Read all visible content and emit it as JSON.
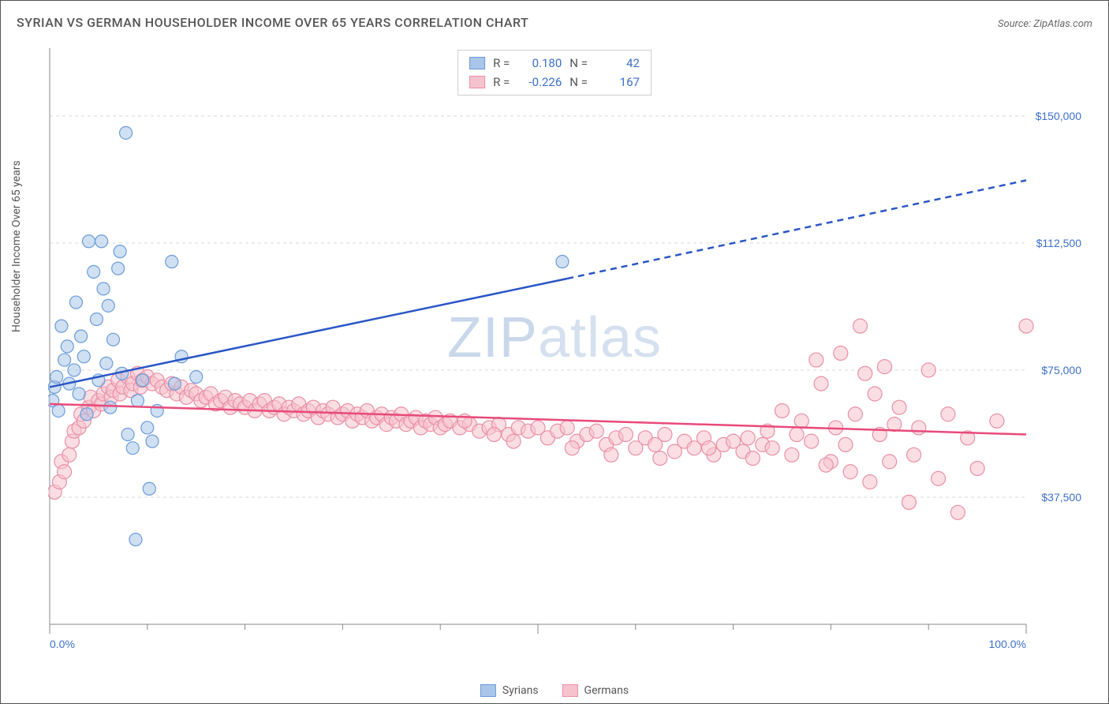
{
  "title": "SYRIAN VS GERMAN HOUSEHOLDER INCOME OVER 65 YEARS CORRELATION CHART",
  "source": "Source: ZipAtlas.com",
  "y_label": "Householder Income Over 65 years",
  "watermark_a": "ZIP",
  "watermark_b": "atlas",
  "chart": {
    "type": "scatter",
    "background_color": "#ffffff",
    "grid_color": "#d8d8d8",
    "axis_color": "#888888",
    "xlim": [
      0,
      100
    ],
    "ylim": [
      0,
      170000
    ],
    "x_ticks_major": [
      0,
      50,
      100
    ],
    "x_ticks_minor": [
      10,
      20,
      30,
      40,
      60,
      70,
      80,
      90
    ],
    "x_tick_labels": {
      "0": "0.0%",
      "100": "100.0%"
    },
    "y_ticks": [
      37500,
      75000,
      112500,
      150000
    ],
    "y_tick_labels": {
      "37500": "$37,500",
      "75000": "$75,000",
      "112500": "$112,500",
      "150000": "$150,000"
    },
    "label_color": "#3b6fc9",
    "label_fontsize": 14
  },
  "series": {
    "syrians": {
      "label": "Syrians",
      "color_fill": "#a9c6ea",
      "color_stroke": "#6b9bd8",
      "marker_radius": 8,
      "trend_color": "#2a56c6",
      "trend_width": 2.5,
      "trend_start": {
        "x": 0,
        "y": 70000
      },
      "trend_solid_end": {
        "x": 53,
        "y": 102000
      },
      "trend_dash_end": {
        "x": 100,
        "y": 131000
      },
      "R": "0.180",
      "N": "42",
      "points": [
        {
          "x": 0.3,
          "y": 66000
        },
        {
          "x": 0.5,
          "y": 70000
        },
        {
          "x": 0.7,
          "y": 73000
        },
        {
          "x": 0.9,
          "y": 63000
        },
        {
          "x": 1.2,
          "y": 88000
        },
        {
          "x": 1.5,
          "y": 78000
        },
        {
          "x": 1.8,
          "y": 82000
        },
        {
          "x": 2.0,
          "y": 71000
        },
        {
          "x": 2.5,
          "y": 75000
        },
        {
          "x": 2.7,
          "y": 95000
        },
        {
          "x": 3.0,
          "y": 68000
        },
        {
          "x": 3.2,
          "y": 85000
        },
        {
          "x": 3.5,
          "y": 79000
        },
        {
          "x": 4.0,
          "y": 113000
        },
        {
          "x": 4.5,
          "y": 104000
        },
        {
          "x": 4.8,
          "y": 90000
        },
        {
          "x": 5.0,
          "y": 72000
        },
        {
          "x": 5.3,
          "y": 113000
        },
        {
          "x": 5.5,
          "y": 99000
        },
        {
          "x": 5.8,
          "y": 77000
        },
        {
          "x": 6.0,
          "y": 94000
        },
        {
          "x": 6.2,
          "y": 64000
        },
        {
          "x": 6.5,
          "y": 84000
        },
        {
          "x": 7.0,
          "y": 105000
        },
        {
          "x": 7.2,
          "y": 110000
        },
        {
          "x": 7.4,
          "y": 74000
        },
        {
          "x": 8.0,
          "y": 56000
        },
        {
          "x": 8.5,
          "y": 52000
        },
        {
          "x": 7.8,
          "y": 145000
        },
        {
          "x": 9.0,
          "y": 66000
        },
        {
          "x": 9.5,
          "y": 72000
        },
        {
          "x": 10.0,
          "y": 58000
        },
        {
          "x": 10.5,
          "y": 54000
        },
        {
          "x": 8.8,
          "y": 25000
        },
        {
          "x": 12.5,
          "y": 107000
        },
        {
          "x": 12.8,
          "y": 71000
        },
        {
          "x": 13.5,
          "y": 79000
        },
        {
          "x": 10.2,
          "y": 40000
        },
        {
          "x": 15.0,
          "y": 73000
        },
        {
          "x": 11.0,
          "y": 63000
        },
        {
          "x": 52.5,
          "y": 107000
        },
        {
          "x": 3.8,
          "y": 62000
        }
      ]
    },
    "germans": {
      "label": "Germans",
      "color_fill": "#f6c2ce",
      "color_stroke": "#ea8fa4",
      "marker_radius": 9,
      "trend_color": "#e84a7a",
      "trend_width": 2.5,
      "trend_start": {
        "x": 0,
        "y": 65000
      },
      "trend_end": {
        "x": 100,
        "y": 56000
      },
      "R": "-0.226",
      "N": "167",
      "points": [
        {
          "x": 0.5,
          "y": 39000
        },
        {
          "x": 1.0,
          "y": 42000
        },
        {
          "x": 1.2,
          "y": 48000
        },
        {
          "x": 1.5,
          "y": 45000
        },
        {
          "x": 2.0,
          "y": 50000
        },
        {
          "x": 2.3,
          "y": 54000
        },
        {
          "x": 2.5,
          "y": 57000
        },
        {
          "x": 3.0,
          "y": 58000
        },
        {
          "x": 3.2,
          "y": 62000
        },
        {
          "x": 3.5,
          "y": 60000
        },
        {
          "x": 4.0,
          "y": 64000
        },
        {
          "x": 4.2,
          "y": 67000
        },
        {
          "x": 4.5,
          "y": 63000
        },
        {
          "x": 5.0,
          "y": 66000
        },
        {
          "x": 5.3,
          "y": 65000
        },
        {
          "x": 5.5,
          "y": 68000
        },
        {
          "x": 6.0,
          "y": 70000
        },
        {
          "x": 6.3,
          "y": 67000
        },
        {
          "x": 6.5,
          "y": 69000
        },
        {
          "x": 7.0,
          "y": 72000
        },
        {
          "x": 7.2,
          "y": 68000
        },
        {
          "x": 7.5,
          "y": 70000
        },
        {
          "x": 8.0,
          "y": 73000
        },
        {
          "x": 8.3,
          "y": 69000
        },
        {
          "x": 8.5,
          "y": 71000
        },
        {
          "x": 9.0,
          "y": 74000
        },
        {
          "x": 9.3,
          "y": 70000
        },
        {
          "x": 9.5,
          "y": 72000
        },
        {
          "x": 10.0,
          "y": 73000
        },
        {
          "x": 10.5,
          "y": 71000
        },
        {
          "x": 11.0,
          "y": 72000
        },
        {
          "x": 11.5,
          "y": 70000
        },
        {
          "x": 12.0,
          "y": 69000
        },
        {
          "x": 12.5,
          "y": 71000
        },
        {
          "x": 13.0,
          "y": 68000
        },
        {
          "x": 13.5,
          "y": 70000
        },
        {
          "x": 14.0,
          "y": 67000
        },
        {
          "x": 14.5,
          "y": 69000
        },
        {
          "x": 15.0,
          "y": 68000
        },
        {
          "x": 15.5,
          "y": 66000
        },
        {
          "x": 16.0,
          "y": 67000
        },
        {
          "x": 16.5,
          "y": 68000
        },
        {
          "x": 17.0,
          "y": 65000
        },
        {
          "x": 17.5,
          "y": 66000
        },
        {
          "x": 18.0,
          "y": 67000
        },
        {
          "x": 18.5,
          "y": 64000
        },
        {
          "x": 19.0,
          "y": 66000
        },
        {
          "x": 19.5,
          "y": 65000
        },
        {
          "x": 20.0,
          "y": 64000
        },
        {
          "x": 20.5,
          "y": 66000
        },
        {
          "x": 21.0,
          "y": 63000
        },
        {
          "x": 21.5,
          "y": 65000
        },
        {
          "x": 22.0,
          "y": 66000
        },
        {
          "x": 22.5,
          "y": 63000
        },
        {
          "x": 23.0,
          "y": 64000
        },
        {
          "x": 23.5,
          "y": 65000
        },
        {
          "x": 24.0,
          "y": 62000
        },
        {
          "x": 24.5,
          "y": 64000
        },
        {
          "x": 25.0,
          "y": 63000
        },
        {
          "x": 25.5,
          "y": 65000
        },
        {
          "x": 26.0,
          "y": 62000
        },
        {
          "x": 26.5,
          "y": 63000
        },
        {
          "x": 27.0,
          "y": 64000
        },
        {
          "x": 27.5,
          "y": 61000
        },
        {
          "x": 28.0,
          "y": 63000
        },
        {
          "x": 28.5,
          "y": 62000
        },
        {
          "x": 29.0,
          "y": 64000
        },
        {
          "x": 29.5,
          "y": 61000
        },
        {
          "x": 30.0,
          "y": 62000
        },
        {
          "x": 30.5,
          "y": 63000
        },
        {
          "x": 31.0,
          "y": 60000
        },
        {
          "x": 31.5,
          "y": 62000
        },
        {
          "x": 32.0,
          "y": 61000
        },
        {
          "x": 32.5,
          "y": 63000
        },
        {
          "x": 33.0,
          "y": 60000
        },
        {
          "x": 33.5,
          "y": 61000
        },
        {
          "x": 34.0,
          "y": 62000
        },
        {
          "x": 34.5,
          "y": 59000
        },
        {
          "x": 35.0,
          "y": 61000
        },
        {
          "x": 35.5,
          "y": 60000
        },
        {
          "x": 36.0,
          "y": 62000
        },
        {
          "x": 36.5,
          "y": 59000
        },
        {
          "x": 37.0,
          "y": 60000
        },
        {
          "x": 37.5,
          "y": 61000
        },
        {
          "x": 38.0,
          "y": 58000
        },
        {
          "x": 38.5,
          "y": 60000
        },
        {
          "x": 39.0,
          "y": 59000
        },
        {
          "x": 39.5,
          "y": 61000
        },
        {
          "x": 40.0,
          "y": 58000
        },
        {
          "x": 40.5,
          "y": 59000
        },
        {
          "x": 41.0,
          "y": 60000
        },
        {
          "x": 42.0,
          "y": 58000
        },
        {
          "x": 43.0,
          "y": 59000
        },
        {
          "x": 44.0,
          "y": 57000
        },
        {
          "x": 45.0,
          "y": 58000
        },
        {
          "x": 46.0,
          "y": 59000
        },
        {
          "x": 47.0,
          "y": 56000
        },
        {
          "x": 48.0,
          "y": 58000
        },
        {
          "x": 49.0,
          "y": 57000
        },
        {
          "x": 50.0,
          "y": 58000
        },
        {
          "x": 51.0,
          "y": 55000
        },
        {
          "x": 52.0,
          "y": 57000
        },
        {
          "x": 53.0,
          "y": 58000
        },
        {
          "x": 54.0,
          "y": 54000
        },
        {
          "x": 55.0,
          "y": 56000
        },
        {
          "x": 56.0,
          "y": 57000
        },
        {
          "x": 57.0,
          "y": 53000
        },
        {
          "x": 58.0,
          "y": 55000
        },
        {
          "x": 59.0,
          "y": 56000
        },
        {
          "x": 60.0,
          "y": 52000
        },
        {
          "x": 61.0,
          "y": 55000
        },
        {
          "x": 62.0,
          "y": 53000
        },
        {
          "x": 63.0,
          "y": 56000
        },
        {
          "x": 64.0,
          "y": 51000
        },
        {
          "x": 65.0,
          "y": 54000
        },
        {
          "x": 66.0,
          "y": 52000
        },
        {
          "x": 67.0,
          "y": 55000
        },
        {
          "x": 68.0,
          "y": 50000
        },
        {
          "x": 69.0,
          "y": 53000
        },
        {
          "x": 70.0,
          "y": 54000
        },
        {
          "x": 71.0,
          "y": 51000
        },
        {
          "x": 72.0,
          "y": 49000
        },
        {
          "x": 73.0,
          "y": 53000
        },
        {
          "x": 74.0,
          "y": 52000
        },
        {
          "x": 75.0,
          "y": 63000
        },
        {
          "x": 76.0,
          "y": 50000
        },
        {
          "x": 77.0,
          "y": 60000
        },
        {
          "x": 78.0,
          "y": 54000
        },
        {
          "x": 79.0,
          "y": 71000
        },
        {
          "x": 80.0,
          "y": 48000
        },
        {
          "x": 80.5,
          "y": 58000
        },
        {
          "x": 81.0,
          "y": 80000
        },
        {
          "x": 82.0,
          "y": 45000
        },
        {
          "x": 82.5,
          "y": 62000
        },
        {
          "x": 83.0,
          "y": 88000
        },
        {
          "x": 83.5,
          "y": 74000
        },
        {
          "x": 84.0,
          "y": 42000
        },
        {
          "x": 84.5,
          "y": 68000
        },
        {
          "x": 85.0,
          "y": 56000
        },
        {
          "x": 85.5,
          "y": 76000
        },
        {
          "x": 86.0,
          "y": 48000
        },
        {
          "x": 87.0,
          "y": 64000
        },
        {
          "x": 88.0,
          "y": 36000
        },
        {
          "x": 89.0,
          "y": 58000
        },
        {
          "x": 90.0,
          "y": 75000
        },
        {
          "x": 91.0,
          "y": 43000
        },
        {
          "x": 92.0,
          "y": 62000
        },
        {
          "x": 93.0,
          "y": 33000
        },
        {
          "x": 94.0,
          "y": 55000
        },
        {
          "x": 95.0,
          "y": 46000
        },
        {
          "x": 97.0,
          "y": 60000
        },
        {
          "x": 100.0,
          "y": 88000
        },
        {
          "x": 78.5,
          "y": 78000
        },
        {
          "x": 76.5,
          "y": 56000
        },
        {
          "x": 73.5,
          "y": 57000
        },
        {
          "x": 71.5,
          "y": 55000
        },
        {
          "x": 45.5,
          "y": 56000
        },
        {
          "x": 42.5,
          "y": 60000
        },
        {
          "x": 47.5,
          "y": 54000
        },
        {
          "x": 53.5,
          "y": 52000
        },
        {
          "x": 57.5,
          "y": 50000
        },
        {
          "x": 62.5,
          "y": 49000
        },
        {
          "x": 67.5,
          "y": 52000
        },
        {
          "x": 86.5,
          "y": 59000
        },
        {
          "x": 88.5,
          "y": 50000
        },
        {
          "x": 81.5,
          "y": 53000
        },
        {
          "x": 79.5,
          "y": 47000
        }
      ]
    }
  },
  "stats_box": {
    "R_label": "R  =",
    "N_label": "N  ="
  },
  "legend": {
    "syrians": "Syrians",
    "germans": "Germans"
  }
}
